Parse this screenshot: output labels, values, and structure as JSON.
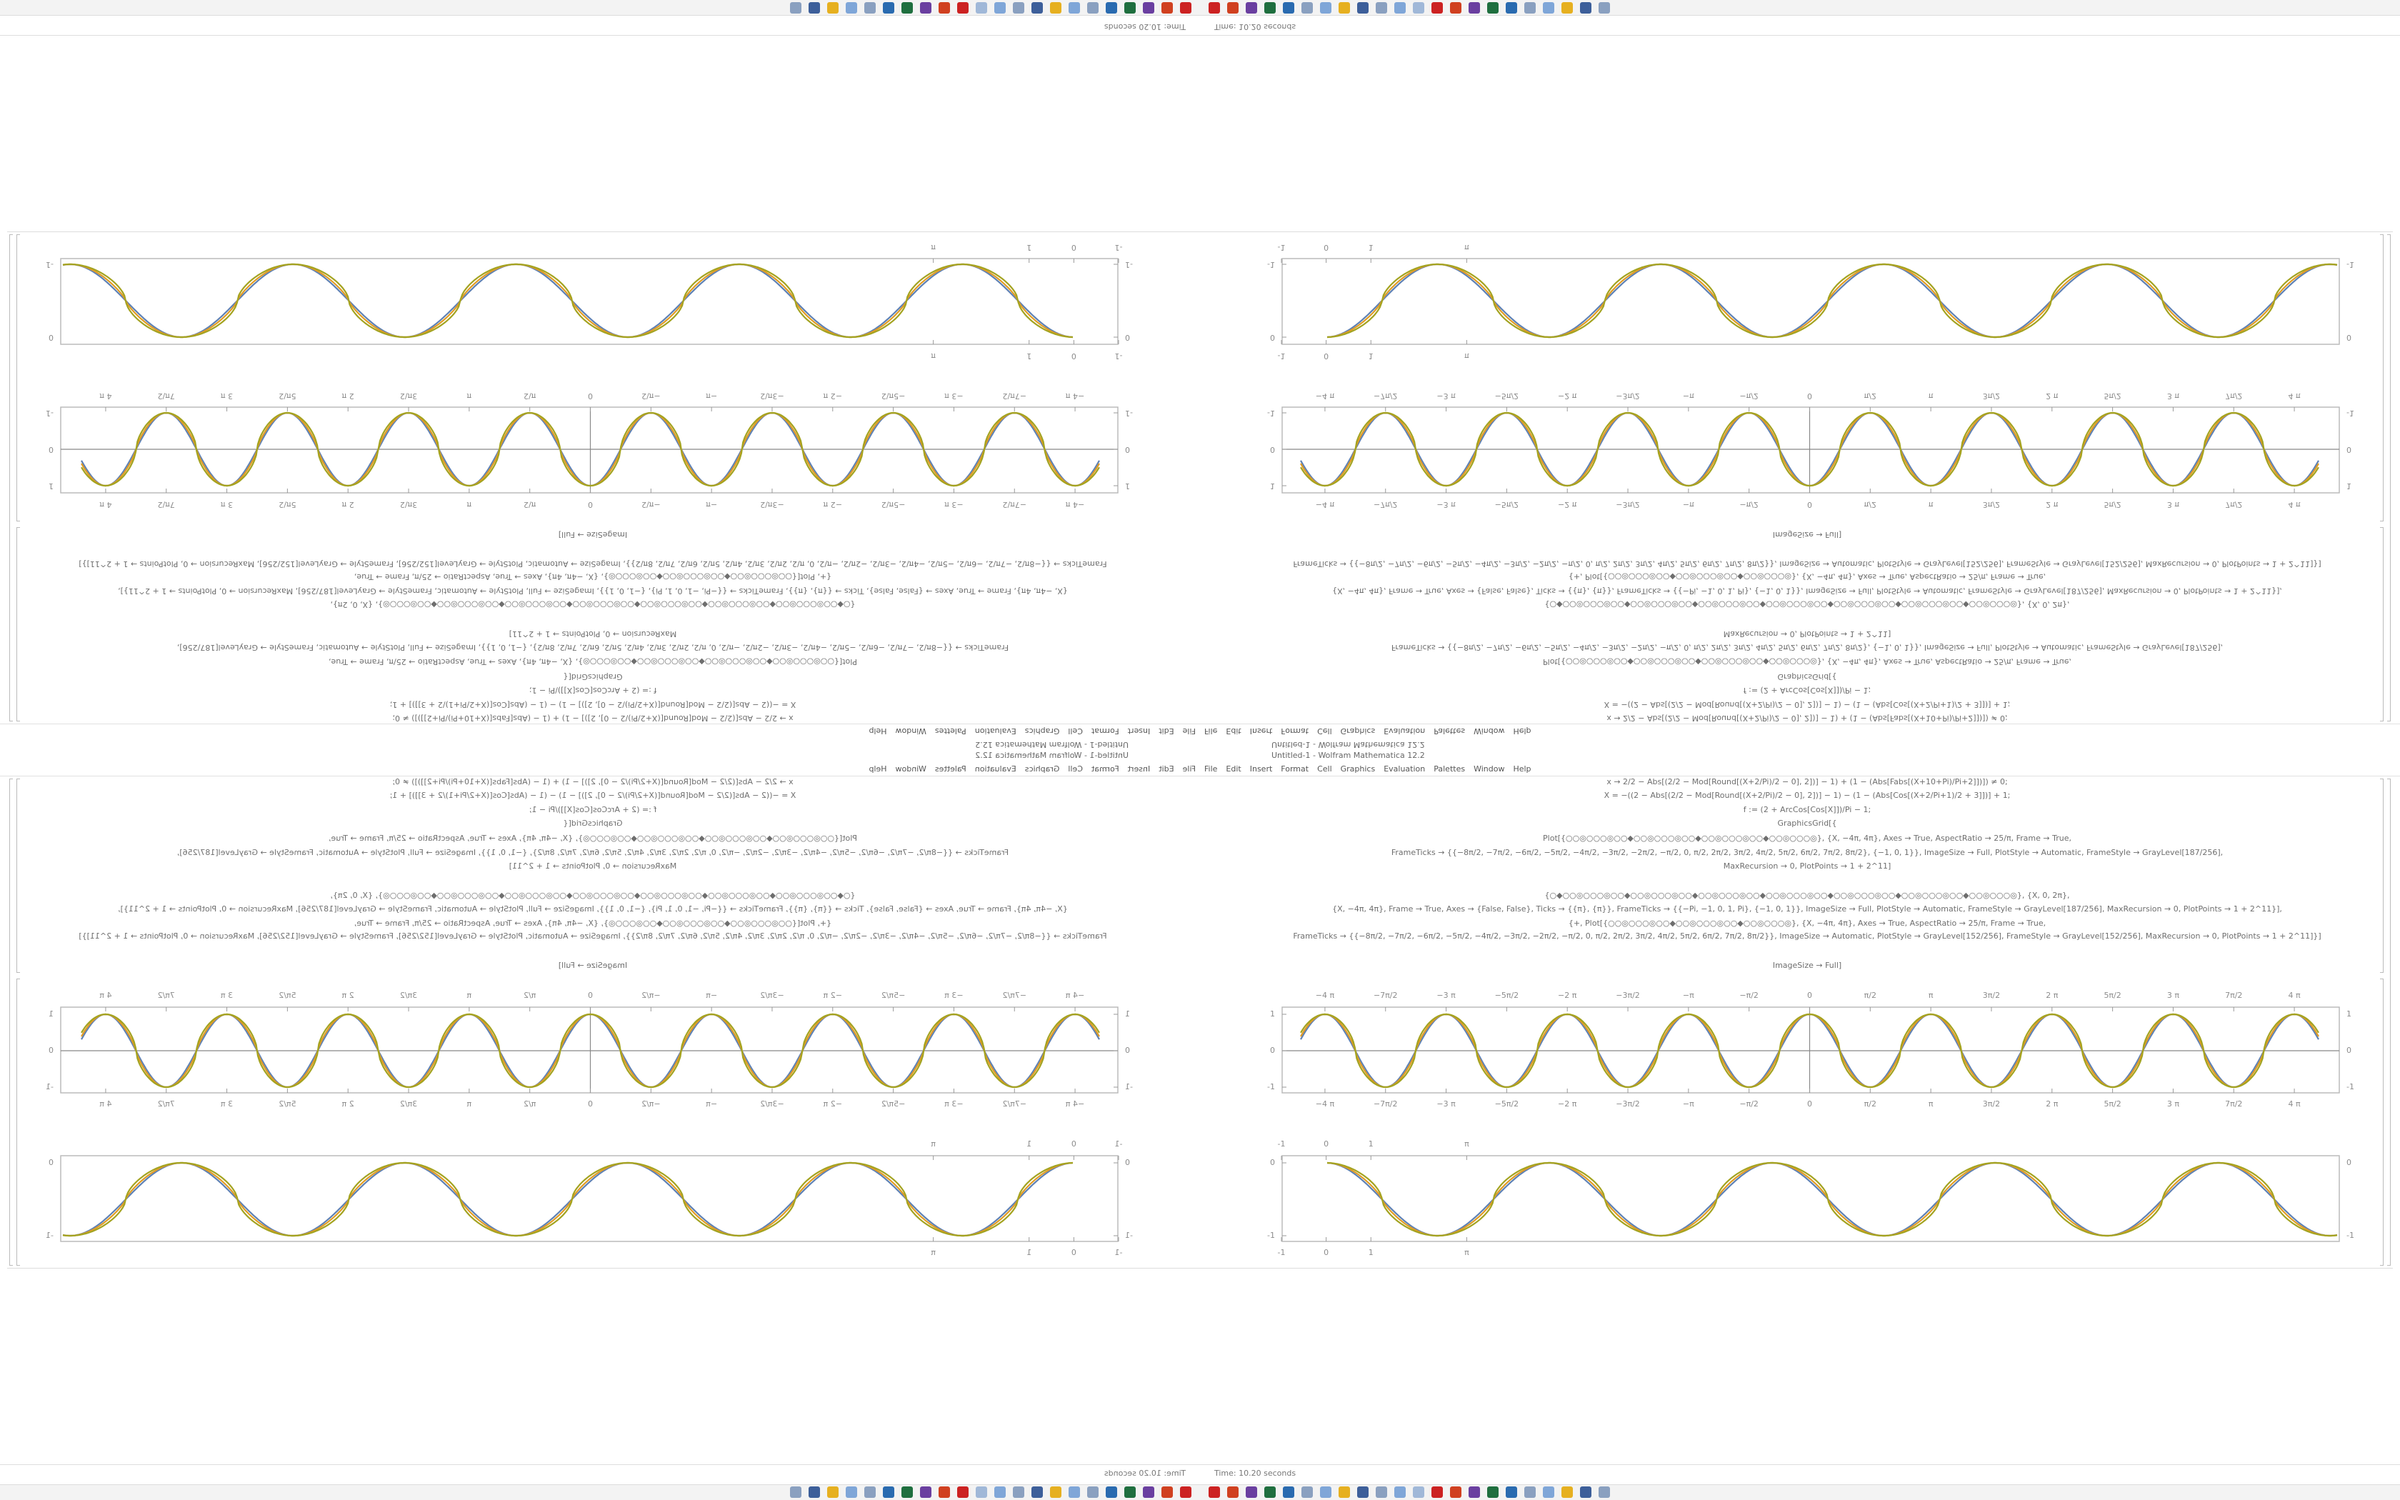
{
  "window_title": "Untitled-1 - Wolfram Mathematica 12.2",
  "menu": [
    "File",
    "Edit",
    "Insert",
    "Format",
    "Cell",
    "Graphics",
    "Evaluation",
    "Palettes",
    "Window",
    "Help"
  ],
  "code": [
    "x → 2/2 − Abs[(2/2 − Mod[Round[(X+2/Pi)/2 − 0], 2])] − 1) + (1 − (Abs[Fabs[(X+10+Pi)/Pi+2]])]) ≠ 0;",
    "X = −((2 − Abs[(2/2 − Mod[Round[(X+2/Pi)/2 − 0], 2])] − 1) − (1 − (Abs[Cos[(X+2/Pi+1)/2 + 3]])] + 1;",
    "f := (2 + ArcCos[Cos[X]])/Pi − 1;",
    "GraphicsGrid[{",
    "Plot[{○○◎○○○◎○○◆○○◎○○○◎○○◆○○◎○○○◎○○◆○○◎○○○◎}, {X, −4π, 4π}, Axes → True, AspectRatio → 25/π, Frame → True,",
    "FrameTicks → {{−8π/2, −7π/2, −6π/2, −5π/2, −4π/2, −3π/2, −2π/2, −π/2, 0, π/2, 2π/2, 3π/2, 4π/2, 5π/2, 6π/2, 7π/2, 8π/2}, {−1, 0, 1}}, ImageSize → Full, PlotStyle → Automatic, FrameStyle → GrayLevel[187/256],",
    "MaxRecursion → 0, PlotPoints → 1 + 2^11]",
    "{○◆○○◎○○○◎○○◆○○◎○○○◎○○◆○○◎○○○◎○○◆○○◎○○○◎○○◆○○◎○○○◎○○◆○○◎○○○◎○○◆○○◎○○○◎}, {X, 0, 2π},",
    "{X, −4π, 4π}, Frame → True, Axes → {False, False}, Ticks → {{π}, {π}}, FrameTicks → {{−Pi, −1, 0, 1, Pi}, {−1, 0, 1}}, ImageSize → Full, PlotStyle → Automatic, FrameStyle → GrayLevel[187/256], MaxRecursion → 0, PlotPoints → 1 + 2^11}],",
    "{+, Plot[{○○◎○○○◎○○◆○○◎○○○◎○○◆○○◎○○○◎}, {X, −4π, 4π}, Axes → True, AspectRatio → 25/π, Frame → True,",
    "FrameTicks → {{−8π/2, −7π/2, −6π/2, −5π/2, −4π/2, −3π/2, −2π/2, −π/2, 0, π/2, 2π/2, 3π/2, 4π/2, 5π/2, 6π/2, 7π/2, 8π/2}}, ImageSize → Automatic, PlotStyle → GrayLevel[152/256], FrameStyle → GrayLevel[152/256], MaxRecursion → 0, PlotPoints → 1 + 2^11]}]"
  ],
  "output_label": "ImageSize → Full]",
  "plot1": {
    "xlim": [
      -4.2,
      4.2
    ],
    "ylim": [
      -1,
      1
    ],
    "yticks": [
      -1,
      0,
      1
    ],
    "xticks": [
      {
        "value": -4,
        "label": "−4 π"
      },
      {
        "value": -3.5,
        "label": "−7π/2"
      },
      {
        "value": -3,
        "label": "−3 π"
      },
      {
        "value": -2.5,
        "label": "−5π/2"
      },
      {
        "value": -2,
        "label": "−2 π"
      },
      {
        "value": -1.5,
        "label": "−3π/2"
      },
      {
        "value": -1,
        "label": "−π"
      },
      {
        "value": -0.5,
        "label": "−π/2"
      },
      0,
      {
        "value": 0.5,
        "label": "π/2"
      },
      {
        "value": 1,
        "label": "π"
      },
      {
        "value": 1.5,
        "label": "3π/2"
      },
      {
        "value": 2,
        "label": "2 π"
      },
      {
        "value": 2.5,
        "label": "5π/2"
      },
      {
        "value": 3,
        "label": "3 π"
      },
      {
        "value": 3.5,
        "label": "7π/2"
      },
      {
        "value": 4,
        "label": "4 π"
      }
    ]
  },
  "plot2": {
    "xlim": [
      -1,
      22.6
    ],
    "ylim": [
      -1,
      0
    ],
    "yticks": [
      -1,
      0
    ],
    "xticks": [
      -1,
      0,
      1,
      {
        "value": 3.14159,
        "label": "π"
      }
    ]
  },
  "status": "Time: 10.20 seconds"
}
